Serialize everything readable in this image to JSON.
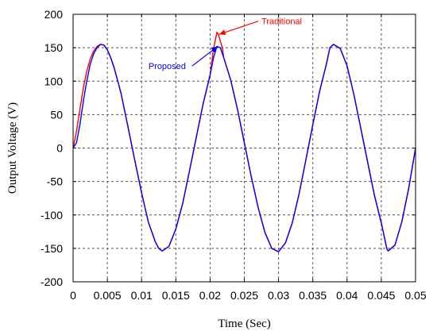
{
  "chart_data": {
    "type": "line",
    "xlabel": "Time (Sec)",
    "ylabel": "Output Voltage (V)",
    "xlim": [
      0,
      0.05
    ],
    "ylim": [
      -200,
      200
    ],
    "xticks": [
      "0",
      "0.005",
      "0.01",
      "0.015",
      "0.02",
      "0.025",
      "0.03",
      "0.035",
      "0.04",
      "0.045",
      "0.05"
    ],
    "yticks": [
      "200",
      "150",
      "100",
      "50",
      "0",
      "-50",
      "-100",
      "-150",
      "-200"
    ],
    "grid": true,
    "series": [
      {
        "name": "Traditional",
        "color": "#ff0000",
        "x": [
          0,
          0.0005,
          0.001,
          0.0015,
          0.002,
          0.0025,
          0.003,
          0.0035,
          0.004,
          0.0045,
          0.005,
          0.0055,
          0.006,
          0.007,
          0.008,
          0.009,
          0.01,
          0.011,
          0.012,
          0.0125,
          0.013,
          0.014,
          0.015,
          0.016,
          0.017,
          0.018,
          0.019,
          0.02,
          0.0205,
          0.0208,
          0.021,
          0.0212,
          0.0215,
          0.0218,
          0.022,
          0.023,
          0.024,
          0.025,
          0.026,
          0.027,
          0.028,
          0.029,
          0.03,
          0.031,
          0.032,
          0.033,
          0.034,
          0.035,
          0.036,
          0.037,
          0.0375,
          0.038,
          0.039,
          0.04,
          0.041,
          0.042,
          0.043,
          0.044,
          0.045,
          0.0458,
          0.046,
          0.047,
          0.048,
          0.049,
          0.05
        ],
        "y": [
          0,
          25,
          58,
          90,
          115,
          133,
          145,
          152,
          155,
          154,
          147,
          135,
          120,
          82,
          32,
          -18,
          -67,
          -111,
          -140,
          -150,
          -154,
          -147,
          -121,
          -83,
          -34,
          17,
          67,
          109,
          148,
          163,
          173,
          170,
          160,
          150,
          135,
          102,
          58,
          8,
          -42,
          -88,
          -126,
          -150,
          -155,
          -142,
          -112,
          -68,
          -17,
          35,
          85,
          126,
          150,
          155,
          149,
          123,
          80,
          30,
          -21,
          -71,
          -112,
          -150,
          -154,
          -145,
          -110,
          -60,
          0
        ]
      },
      {
        "name": "Proposed",
        "color": "#0000ff",
        "x": [
          0,
          0.0005,
          0.001,
          0.0015,
          0.002,
          0.0025,
          0.003,
          0.0035,
          0.004,
          0.0045,
          0.005,
          0.0055,
          0.006,
          0.007,
          0.008,
          0.009,
          0.01,
          0.011,
          0.012,
          0.0125,
          0.013,
          0.014,
          0.015,
          0.016,
          0.017,
          0.018,
          0.019,
          0.02,
          0.0205,
          0.021,
          0.0215,
          0.022,
          0.023,
          0.024,
          0.025,
          0.026,
          0.027,
          0.028,
          0.029,
          0.03,
          0.031,
          0.032,
          0.033,
          0.034,
          0.035,
          0.036,
          0.037,
          0.0375,
          0.038,
          0.039,
          0.04,
          0.041,
          0.042,
          0.043,
          0.044,
          0.045,
          0.0458,
          0.046,
          0.047,
          0.048,
          0.049,
          0.05
        ],
        "y": [
          0,
          8,
          35,
          70,
          100,
          125,
          141,
          150,
          155,
          154,
          147,
          135,
          120,
          82,
          32,
          -18,
          -67,
          -111,
          -140,
          -150,
          -154,
          -147,
          -121,
          -83,
          -34,
          17,
          67,
          109,
          135,
          152,
          150,
          135,
          102,
          58,
          8,
          -42,
          -88,
          -126,
          -150,
          -155,
          -142,
          -112,
          -68,
          -17,
          35,
          85,
          126,
          150,
          155,
          149,
          123,
          80,
          30,
          -21,
          -71,
          -112,
          -150,
          -154,
          -145,
          -110,
          -60,
          0
        ]
      }
    ],
    "annotations": [
      {
        "text": "Traditional",
        "color": "#ff0000",
        "x": 0.0275,
        "y": 185,
        "point_x": 0.0213,
        "point_y": 170
      },
      {
        "text": "Proposed",
        "color": "#0000ff",
        "x": 0.011,
        "y": 118,
        "point_x": 0.0211,
        "point_y": 152
      }
    ]
  }
}
